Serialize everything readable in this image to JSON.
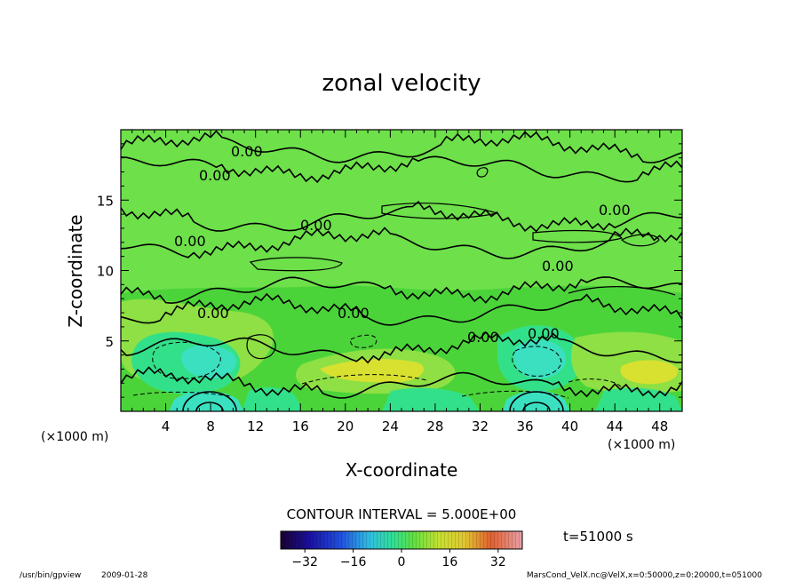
{
  "chart_data": {
    "type": "contour",
    "title": "zonal velocity",
    "xlabel": "X-coordinate",
    "ylabel": "Z-coordinate",
    "x_unit": "(×1000 m)",
    "y_unit": "(×1000 m)",
    "xlim": [
      0,
      50
    ],
    "ylim": [
      0,
      20
    ],
    "x_ticks": [
      4,
      8,
      12,
      16,
      20,
      24,
      28,
      32,
      36,
      40,
      44,
      48
    ],
    "y_ticks": [
      5,
      10,
      15
    ],
    "contour_label": "0.00",
    "contour_interval_text": "CONTOUR INTERVAL = 5.000E+00",
    "time_text": "t=51000 s",
    "colorbar_ticks": [
      -32,
      -16,
      0,
      16,
      32
    ],
    "colorbar_range": [
      -40,
      40
    ],
    "fill_colors": {
      "background": "#4bd43a",
      "light_green": "#6de04a",
      "olive_green": "#8ee044",
      "cyan_green": "#33e08a",
      "cyan": "#3ae0c0",
      "yellow": "#d8e030"
    },
    "zero_contour_z": [
      18.6,
      17.2,
      13.6,
      11.8,
      8.6,
      7.0,
      4.4,
      1.8
    ]
  },
  "footer": {
    "program": "/usr/bin/gpview",
    "date": "2009-01-28",
    "source": "MarsCond_VelX.nc@VelX,x=0:50000,z=0:20000,t=051000"
  }
}
